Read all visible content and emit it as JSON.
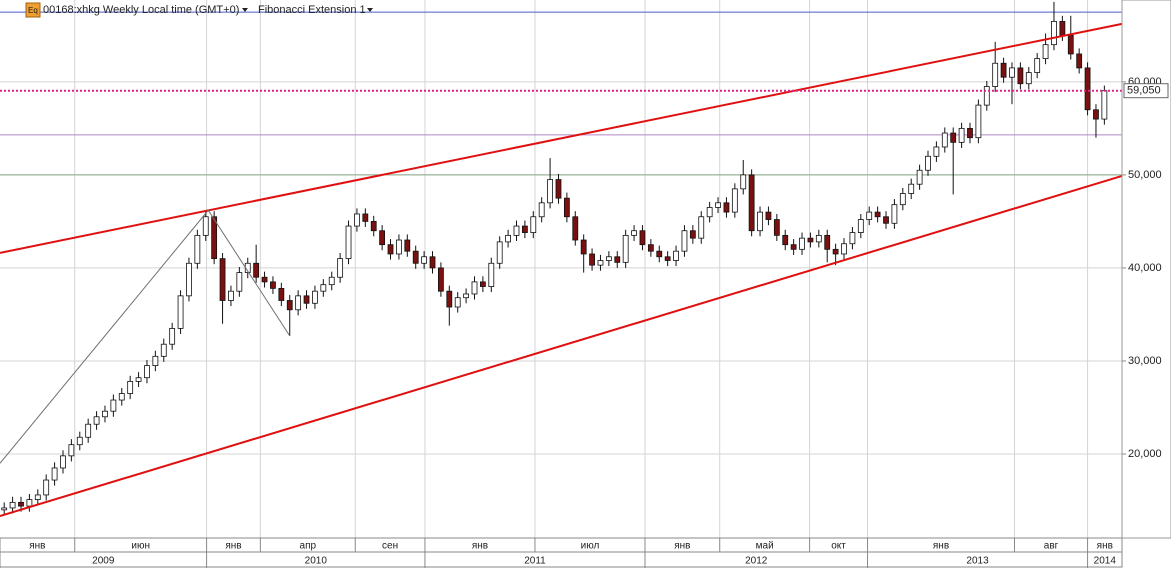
{
  "header": {
    "icon": "Eq",
    "title": "00168:xhkg Weekly Local time (GMT+0)",
    "indicator": "Fibonacci Extension 1"
  },
  "chart_data": {
    "type": "candlestick",
    "open": [
      14000,
      14200,
      14800,
      14400,
      15100,
      15600,
      17200,
      18500,
      19800,
      21000,
      21800,
      23200,
      24000,
      24600,
      25800,
      26500,
      27800,
      28200,
      29500,
      30500,
      31800,
      33500,
      37000,
      40500,
      43500,
      45500,
      41000,
      36500,
      37500,
      39500,
      40500,
      39000,
      38500,
      37800,
      36500,
      35500,
      37000,
      36200,
      37500,
      38200,
      39000,
      41000,
      44500,
      45800,
      45000,
      44000,
      42500,
      41500,
      43000,
      41800,
      40500,
      41200,
      40000,
      37500,
      35800,
      36800,
      37200,
      38500,
      38000,
      40500,
      42800,
      43500,
      44500,
      43800,
      45500,
      47000,
      49500,
      47500,
      45500,
      43000,
      41500,
      40300,
      40800,
      41200,
      40600,
      43500,
      44000,
      42500,
      41800,
      41200,
      40800,
      41800,
      44000,
      43200,
      45500,
      46500,
      47000,
      46000,
      48500,
      50000,
      44000,
      46000,
      45200,
      43500,
      42500,
      42000,
      43200,
      42800,
      43500,
      42000,
      41500,
      42600,
      43800,
      45200,
      46000,
      45500,
      44800,
      46800,
      48000,
      49000,
      50500,
      52000,
      53000,
      54500,
      53500,
      55000,
      54000,
      57500,
      59500,
      62000,
      60500,
      61500,
      59800,
      61000,
      62500,
      64000,
      66500,
      65000,
      63000,
      61500,
      57000,
      56000
    ],
    "high": [
      14800,
      15400,
      15400,
      15700,
      16200,
      17800,
      19100,
      20400,
      21600,
      22400,
      23800,
      24600,
      25200,
      26400,
      27100,
      28400,
      28800,
      30100,
      31100,
      32400,
      34100,
      37600,
      41100,
      44100,
      46200,
      46100,
      41600,
      38100,
      40100,
      41100,
      42500,
      39600,
      39100,
      38400,
      37100,
      37600,
      37600,
      38100,
      38800,
      39600,
      41600,
      45100,
      46400,
      46400,
      45600,
      44600,
      43100,
      43600,
      43600,
      42400,
      41800,
      41800,
      40600,
      38100,
      37400,
      37800,
      39100,
      39100,
      41100,
      43400,
      44100,
      45100,
      45100,
      46100,
      47600,
      51800,
      50100,
      48100,
      46100,
      43600,
      42100,
      41400,
      41800,
      41800,
      44100,
      44600,
      44600,
      43100,
      42400,
      41800,
      42400,
      44600,
      44600,
      46100,
      47100,
      47600,
      47600,
      49100,
      51600,
      50600,
      46600,
      46600,
      45800,
      44100,
      43100,
      43800,
      43800,
      44100,
      44100,
      42600,
      43200,
      44400,
      45800,
      46600,
      46600,
      46100,
      47400,
      48600,
      49600,
      51100,
      52600,
      53600,
      55100,
      55100,
      55600,
      55600,
      58100,
      60100,
      64300,
      62600,
      62100,
      62100,
      61600,
      63100,
      65200,
      68600,
      67100,
      67100,
      63600,
      62100,
      57600,
      59600
    ],
    "low": [
      13400,
      13600,
      13800,
      13800,
      14500,
      15000,
      16600,
      17900,
      19200,
      20400,
      21200,
      22600,
      23400,
      24000,
      25200,
      25900,
      27200,
      27600,
      28900,
      29900,
      31200,
      32900,
      36400,
      39900,
      42900,
      40400,
      34000,
      35900,
      36900,
      38900,
      38400,
      37900,
      37200,
      35900,
      32700,
      34900,
      35600,
      35600,
      36900,
      37600,
      38400,
      40400,
      43900,
      44400,
      43400,
      41900,
      40900,
      40900,
      41200,
      39900,
      39900,
      39400,
      36900,
      33800,
      35200,
      36200,
      36600,
      37400,
      37400,
      39900,
      42200,
      42900,
      43200,
      43200,
      44900,
      46400,
      46900,
      44900,
      42400,
      39500,
      39700,
      39700,
      40200,
      40000,
      40000,
      42900,
      41900,
      41200,
      40600,
      40200,
      40200,
      41200,
      42600,
      42600,
      44900,
      45900,
      45400,
      45400,
      47900,
      43400,
      43400,
      44600,
      42900,
      41900,
      41400,
      41400,
      42200,
      42200,
      40600,
      40300,
      40900,
      42000,
      43200,
      44600,
      44900,
      44200,
      44200,
      46200,
      47400,
      48400,
      49900,
      51400,
      52400,
      47900,
      52900,
      53400,
      53400,
      56900,
      58900,
      59900,
      57600,
      59200,
      59200,
      60400,
      61900,
      63400,
      64400,
      62400,
      60900,
      56400,
      54000,
      55400
    ],
    "close": [
      14200,
      14800,
      14400,
      15100,
      15600,
      17200,
      18500,
      19800,
      21000,
      21800,
      23200,
      24000,
      24600,
      25800,
      26500,
      27800,
      28200,
      29500,
      30500,
      31800,
      33500,
      37000,
      40500,
      43500,
      45500,
      41000,
      36500,
      37500,
      39500,
      40500,
      39000,
      38500,
      37800,
      36500,
      35500,
      37000,
      36200,
      37500,
      38200,
      39000,
      41000,
      44500,
      45800,
      45000,
      44000,
      42500,
      41500,
      43000,
      41800,
      40500,
      41200,
      40000,
      37500,
      35800,
      36800,
      37200,
      38500,
      38000,
      40500,
      42800,
      43500,
      44500,
      43800,
      45500,
      47000,
      49500,
      47500,
      45500,
      43000,
      41500,
      40300,
      40800,
      41200,
      40600,
      43500,
      44000,
      42500,
      41800,
      41200,
      40800,
      41800,
      44000,
      43200,
      45500,
      46500,
      47000,
      46000,
      48500,
      50000,
      44000,
      46000,
      45200,
      43500,
      42500,
      42000,
      43200,
      42800,
      43500,
      42000,
      41500,
      42600,
      43800,
      45200,
      46000,
      45500,
      44800,
      46800,
      48000,
      49000,
      50500,
      52000,
      53000,
      54500,
      53500,
      55000,
      54000,
      57500,
      59500,
      62000,
      60500,
      61500,
      59800,
      61000,
      62500,
      64000,
      66500,
      65000,
      63000,
      61500,
      57000,
      56000,
      59050
    ],
    "up_color": "#ffffff",
    "down_color": "#7a1010",
    "xlim": [
      -0.5,
      133.1
    ],
    "xticks": [
      {
        "value": -0.5,
        "label": "янв"
      },
      {
        "value": 8.4,
        "label": "июн"
      },
      {
        "value": 24.1,
        "label": "янв"
      },
      {
        "value": 30.5,
        "label": "апр"
      },
      {
        "value": 41.8,
        "label": "сен"
      },
      {
        "value": 50.1,
        "label": "янв"
      },
      {
        "value": 63.2,
        "label": "июл"
      },
      {
        "value": 76.3,
        "label": "янв"
      },
      {
        "value": 85.2,
        "label": "май"
      },
      {
        "value": 95.9,
        "label": "окт"
      },
      {
        "value": 102.8,
        "label": "янв"
      },
      {
        "value": 120.3,
        "label": "авг"
      },
      {
        "value": 129,
        "label": "янв"
      }
    ],
    "years": [
      {
        "value": -0.5,
        "label": "2009"
      },
      {
        "value": 24.1,
        "label": "2010"
      },
      {
        "value": 50.1,
        "label": "2011"
      },
      {
        "value": 76.3,
        "label": "2012"
      },
      {
        "value": 102.8,
        "label": "2013"
      },
      {
        "value": 129,
        "label": "2014"
      }
    ],
    "ylim": [
      10970,
      68800
    ],
    "yticks": [
      {
        "value": 20000,
        "label": "20,000"
      },
      {
        "value": 30000,
        "label": "30,000"
      },
      {
        "value": 40000,
        "label": "40,000"
      },
      {
        "value": 50000,
        "label": "50,000"
      },
      {
        "value": 60000,
        "label": "60,000"
      }
    ],
    "grid": true,
    "hlines": [
      {
        "value": 67500,
        "color": "#4a5cc8"
      },
      {
        "value": 54300,
        "color": "#b088c8"
      },
      {
        "value": 50000,
        "color": "#88a888"
      }
    ],
    "price_line": {
      "value": 59050,
      "label": "59,050",
      "color": "#e0208a"
    },
    "trend_lines": [
      {
        "x": [
          -0.5,
          133.1
        ],
        "y": [
          41613,
          66237
        ],
        "color": "#e01010"
      },
      {
        "x": [
          -0.5,
          133.1
        ],
        "y": [
          13333,
          49892
        ],
        "color": "#e01010"
      },
      {
        "x": [
          -0.5,
          24.3,
          34
        ],
        "y": [
          19000,
          46200,
          32700
        ],
        "color": "#707070"
      }
    ]
  }
}
